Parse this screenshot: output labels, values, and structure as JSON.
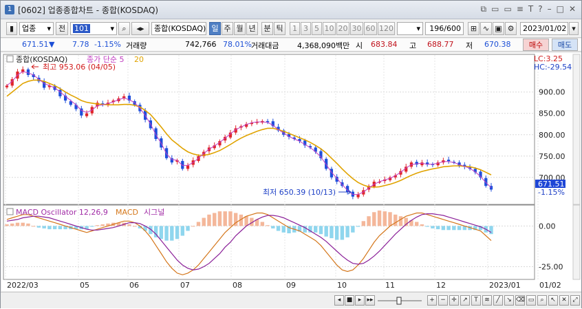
{
  "window": {
    "title": "[0602] 업종종합차트 - 종합(KOSDAQ)",
    "number": "1"
  },
  "toolbar": {
    "market_select": "업종",
    "jeon_label": "전",
    "code": "101",
    "index_name": "종합(KOSDAQ)",
    "period_buttons": [
      "일",
      "주",
      "월",
      "년",
      "분",
      "틱"
    ],
    "interval_buttons": [
      "1",
      "3",
      "5",
      "10",
      "20",
      "30",
      "60",
      "120"
    ],
    "count": "196/600",
    "date": "2023/01/02"
  },
  "quote": {
    "price": "671.51",
    "arrow": "▼",
    "change": "7.78",
    "change_pct": "-1.15%",
    "volume_label": "거래량",
    "volume": "742,766",
    "volume_pct": "78.01%",
    "amount_label": "거래대금",
    "amount": "4,368,090백만",
    "open_label": "시",
    "open": "683.84",
    "high_label": "고",
    "high": "688.77",
    "low_label": "저",
    "low": "670.38",
    "buy_label": "매수",
    "sell_label": "매도"
  },
  "price_panel": {
    "legend_name": "종합(KOSDAQ)",
    "legend_ma": "종가 단순 5",
    "legend_ma2": "20",
    "high_annotation": "최고 953.06 (04/05)",
    "low_annotation": "최저 650.39 (10/13)",
    "lc_label": "LC:3.25",
    "hc_label": "HC:-29.54",
    "current_price_tag": "671.51",
    "current_pct_tag": "-1.15%",
    "y_ticks": [
      "900.00",
      "850.00",
      "800.00",
      "750.00",
      "700.00"
    ]
  },
  "macd_panel": {
    "legend_osc": "MACD Oscillator 12,26,9",
    "legend_macd": "MACD",
    "legend_signal": "시그널",
    "y_ticks": [
      "0.00",
      "-25.00"
    ]
  },
  "x_axis": {
    "labels": [
      "2022/03",
      "05",
      "06",
      "07",
      "08",
      "09",
      "10",
      "11",
      "12",
      "2023/01",
      "01/02"
    ]
  },
  "chart_data": {
    "type": "candlestick",
    "price": {
      "title": "종합(KOSDAQ)",
      "ylim": [
        640,
        985
      ],
      "series": [
        {
          "name": "종합(KOSDAQ)",
          "values": [
            915,
            930,
            948,
            953,
            940,
            935,
            925,
            910,
            915,
            905,
            890,
            880,
            870,
            860,
            845,
            850,
            865,
            875,
            870,
            875,
            880,
            885,
            890,
            880,
            870,
            855,
            835,
            815,
            790,
            770,
            745,
            735,
            740,
            720,
            728,
            740,
            750,
            760,
            770,
            775,
            785,
            795,
            805,
            815,
            820,
            825,
            828,
            830,
            832,
            830,
            820,
            810,
            800,
            795,
            790,
            785,
            775,
            770,
            760,
            745,
            720,
            700,
            690,
            680,
            665,
            655,
            660,
            670,
            680,
            690,
            690,
            695,
            700,
            705,
            715,
            725,
            735,
            730,
            735,
            730,
            730,
            735,
            740,
            738,
            735,
            728,
            725,
            720,
            712,
            700,
            680,
            671.51
          ]
        },
        {
          "name": "종가 단순 5",
          "values": [
            915,
            925,
            940,
            948,
            945,
            940,
            930,
            920,
            915,
            910,
            900,
            890,
            880,
            870,
            857,
            852,
            858,
            868,
            870,
            873,
            877,
            882,
            886,
            882,
            875,
            862,
            845,
            825,
            800,
            780,
            755,
            742,
            740,
            728,
            728,
            735,
            745,
            756,
            766,
            774,
            782,
            792,
            802,
            812,
            818,
            824,
            828,
            830,
            830,
            829,
            822,
            812,
            804,
            796,
            790,
            785,
            777,
            770,
            760,
            748,
            730,
            712,
            698,
            683,
            670,
            660,
            660,
            666,
            675,
            684,
            690,
            694,
            698,
            704,
            712,
            722,
            730,
            732,
            733,
            731,
            731,
            733,
            737,
            737,
            735,
            730,
            726,
            721,
            713,
            702,
            688,
            676
          ]
        },
        {
          "name": "20",
          "values": [
            890,
            900,
            910,
            920,
            925,
            928,
            928,
            925,
            920,
            915,
            908,
            900,
            893,
            887,
            880,
            876,
            874,
            872,
            871,
            870,
            870,
            870,
            871,
            871,
            869,
            865,
            857,
            847,
            833,
            818,
            802,
            788,
            778,
            768,
            760,
            755,
            752,
            752,
            754,
            758,
            763,
            770,
            777,
            785,
            792,
            798,
            803,
            808,
            812,
            815,
            815,
            812,
            808,
            803,
            798,
            793,
            788,
            782,
            775,
            767,
            757,
            745,
            733,
            720,
            708,
            697,
            688,
            682,
            678,
            677,
            678,
            681,
            684,
            688,
            693,
            699,
            705,
            710,
            714,
            717,
            720,
            722,
            725,
            726,
            727,
            727,
            726,
            725,
            722,
            718,
            712,
            706
          ]
        }
      ],
      "notes": {
        "high": "953.06 (04/05)",
        "low": "650.39 (10/13)"
      }
    },
    "macd": {
      "title": "MACD Oscillator 12,26,9",
      "ylim": [
        -32,
        12
      ],
      "series": [
        {
          "name": "MACD",
          "values": [
            4,
            5,
            6,
            7,
            7,
            6,
            5,
            4,
            3,
            2,
            1,
            0,
            -1,
            -2,
            -3,
            -4,
            -3,
            -2,
            -1,
            0,
            1,
            2,
            3,
            3,
            2,
            0,
            -3,
            -7,
            -12,
            -17,
            -22,
            -26,
            -29,
            -30,
            -29,
            -27,
            -24,
            -20,
            -16,
            -12,
            -8,
            -4,
            -1,
            2,
            4,
            6,
            7,
            8,
            8,
            7,
            5,
            3,
            1,
            -1,
            -2,
            -3,
            -5,
            -7,
            -9,
            -12,
            -16,
            -20,
            -24,
            -27,
            -28,
            -27,
            -24,
            -20,
            -15,
            -10,
            -6,
            -3,
            0,
            2,
            4,
            6,
            7,
            8,
            8,
            7,
            6,
            5,
            4,
            3,
            2,
            1,
            0,
            -1,
            -2,
            -3,
            -6,
            -9
          ]
        },
        {
          "name": "시그널",
          "values": [
            3,
            3.5,
            4,
            5,
            5.5,
            6,
            6,
            5.5,
            5,
            4,
            3,
            2,
            1,
            0,
            -1,
            -2,
            -2.5,
            -2.5,
            -2,
            -1.5,
            -1,
            0,
            1,
            2,
            2,
            1.5,
            0,
            -2,
            -5,
            -9,
            -13,
            -17,
            -21,
            -24,
            -26,
            -27,
            -26.5,
            -25,
            -23,
            -20,
            -17,
            -13,
            -10,
            -6,
            -3,
            0,
            2,
            4,
            5.5,
            6.5,
            6.5,
            6,
            5,
            3.5,
            2,
            0.5,
            -1,
            -3,
            -5,
            -7,
            -9.5,
            -12.5,
            -15.5,
            -18.5,
            -21,
            -23,
            -23.5,
            -23,
            -21,
            -18.5,
            -15.5,
            -12,
            -8.5,
            -5,
            -2,
            1,
            3.5,
            5.5,
            7,
            7.5,
            7.5,
            7,
            6.5,
            5.5,
            4.5,
            3.5,
            2.5,
            1.5,
            0.5,
            -0.5,
            -2,
            -4
          ]
        }
      ]
    },
    "x_labels": [
      "2022/03",
      "05",
      "06",
      "07",
      "08",
      "09",
      "10",
      "11",
      "12",
      "2023/01",
      "01/02"
    ]
  }
}
